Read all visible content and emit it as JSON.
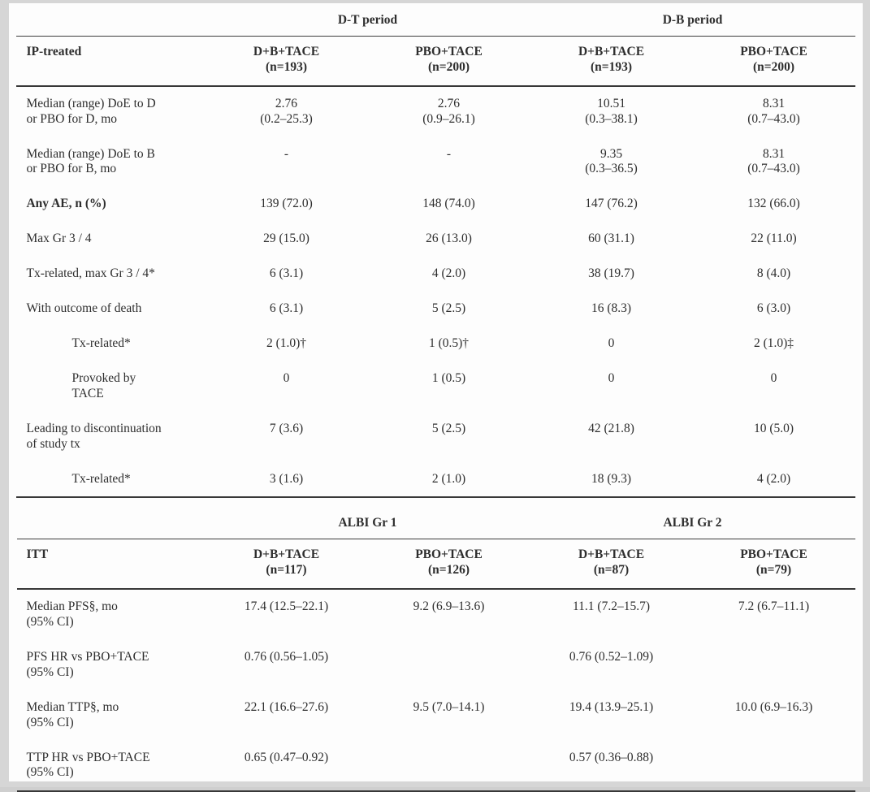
{
  "page": {
    "background": "#fdfdfd",
    "text_color": "#2e2e2e",
    "rule_color": "#383838"
  },
  "safety_table": {
    "span1": "D-T period",
    "span2": "D-B period",
    "stub": "IP-treated",
    "columns": [
      [
        "D+B+TACE",
        "(n=193)"
      ],
      [
        "PBO+TACE",
        "(n=200)"
      ],
      [
        "D+B+TACE",
        "(n=193)"
      ],
      [
        "PBO+TACE",
        "(n=200)"
      ]
    ],
    "rows": [
      {
        "label": [
          "Median (range) DoE to D",
          "or PBO for D, mo"
        ],
        "indent": false,
        "bold": false,
        "cells": [
          [
            "2.76",
            "(0.2–25.3)"
          ],
          [
            "2.76",
            "(0.9–26.1)"
          ],
          [
            "10.51",
            "(0.3–38.1)"
          ],
          [
            "8.31",
            "(0.7–43.0)"
          ]
        ]
      },
      {
        "label": [
          "Median (range) DoE to B",
          "or PBO for B, mo"
        ],
        "indent": false,
        "bold": false,
        "cells": [
          "-",
          "-",
          [
            "9.35",
            "(0.3–36.5)"
          ],
          [
            "8.31",
            "(0.7–43.0)"
          ]
        ]
      },
      {
        "label": "Any AE, n (%)",
        "indent": false,
        "bold": true,
        "cells": [
          "139 (72.0)",
          "148 (74.0)",
          "147 (76.2)",
          "132 (66.0)"
        ]
      },
      {
        "label": "Max Gr 3 / 4",
        "indent": false,
        "bold": false,
        "cells": [
          "29 (15.0)",
          "26 (13.0)",
          "60 (31.1)",
          "22 (11.0)"
        ]
      },
      {
        "label": "Tx-related, max Gr 3 / 4*",
        "indent": false,
        "bold": false,
        "cells": [
          "6 (3.1)",
          "4 (2.0)",
          "38 (19.7)",
          "8 (4.0)"
        ]
      },
      {
        "label": "With outcome of death",
        "indent": false,
        "bold": false,
        "cells": [
          "6 (3.1)",
          "5 (2.5)",
          "16 (8.3)",
          "6 (3.0)"
        ]
      },
      {
        "label": "Tx-related*",
        "indent": true,
        "bold": false,
        "cells": [
          "2 (1.0)†",
          "1 (0.5)†",
          "0",
          "2 (1.0)‡"
        ]
      },
      {
        "label": [
          "Provoked by",
          "TACE"
        ],
        "indent": true,
        "bold": false,
        "cells": [
          "0",
          "1 (0.5)",
          "0",
          "0"
        ]
      },
      {
        "label": [
          "Leading to discontinuation",
          "of study tx"
        ],
        "indent": false,
        "bold": false,
        "cells": [
          "7 (3.6)",
          "5 (2.5)",
          "42 (21.8)",
          "10 (5.0)"
        ]
      },
      {
        "label": "Tx-related*",
        "indent": true,
        "bold": false,
        "cells": [
          "3 (1.6)",
          "2 (1.0)",
          "18 (9.3)",
          "4 (2.0)"
        ]
      }
    ]
  },
  "efficacy_table": {
    "span1": "ALBI Gr 1",
    "span2": "ALBI Gr 2",
    "stub": "ITT",
    "columns": [
      [
        "D+B+TACE",
        "(n=117)"
      ],
      [
        "PBO+TACE",
        "(n=126)"
      ],
      [
        "D+B+TACE",
        "(n=87)"
      ],
      [
        "PBO+TACE",
        "(n=79)"
      ]
    ],
    "rows": [
      {
        "label": [
          "Median PFS§, mo",
          "(95% CI)"
        ],
        "indent": false,
        "bold": false,
        "cells": [
          "17.4 (12.5–22.1)",
          "9.2 (6.9–13.6)",
          "11.1 (7.2–15.7)",
          "7.2 (6.7–11.1)"
        ]
      },
      {
        "label": [
          "PFS HR vs PBO+TACE",
          "(95% CI)"
        ],
        "indent": false,
        "bold": false,
        "cells": [
          "0.76 (0.56–1.05)",
          "",
          "0.76 (0.52–1.09)",
          ""
        ]
      },
      {
        "label": [
          "Median TTP§, mo",
          "(95% CI)"
        ],
        "indent": false,
        "bold": false,
        "cells": [
          "22.1 (16.6–27.6)",
          "9.5 (7.0–14.1)",
          "19.4 (13.9–25.1)",
          "10.0 (6.9–16.3)"
        ]
      },
      {
        "label": [
          "TTP HR vs PBO+TACE",
          "(95% CI)"
        ],
        "indent": false,
        "bold": false,
        "cells": [
          "0.65 (0.47–0.92)",
          "",
          "0.57 (0.36–0.88)",
          ""
        ]
      }
    ]
  }
}
